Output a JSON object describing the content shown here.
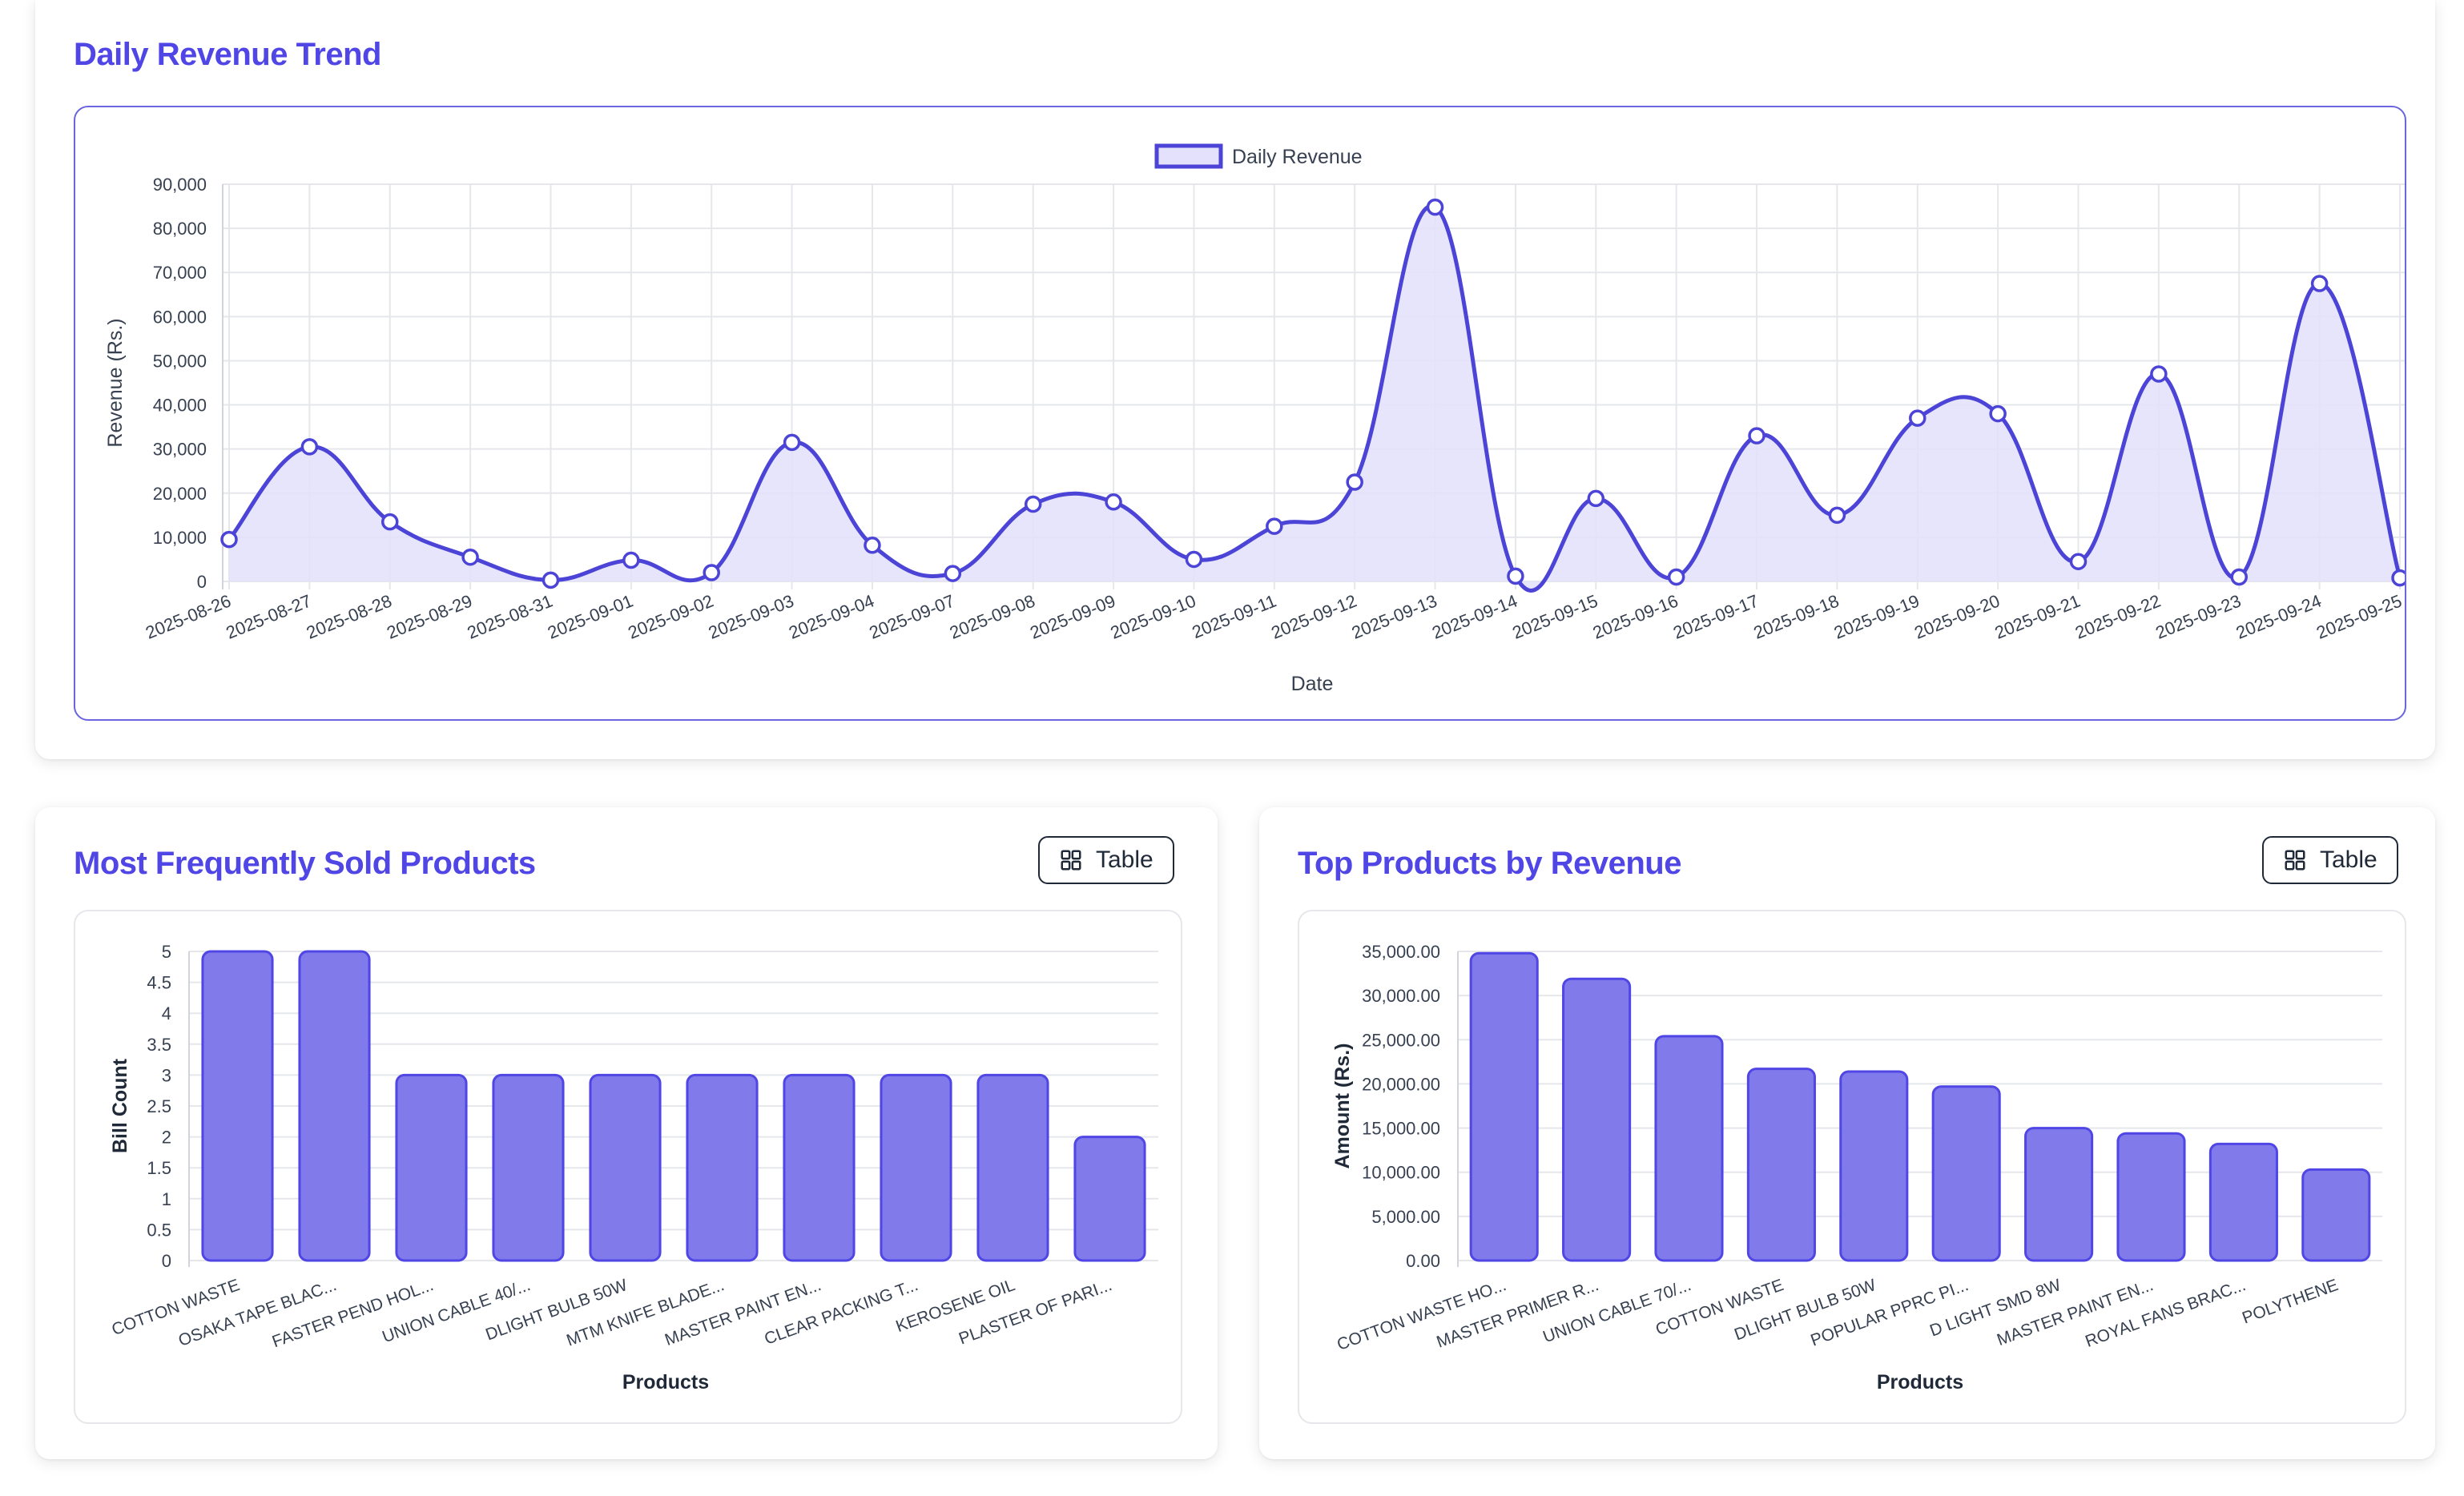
{
  "trend_card": {
    "title": "Daily Revenue Trend"
  },
  "frequent_card": {
    "title": "Most Frequently Sold Products",
    "table_button_label": "Table"
  },
  "revenue_card": {
    "title": "Top Products by Revenue",
    "table_button_label": "Table"
  },
  "colors": {
    "accent": "#4f46e5",
    "line": "#4b44d6",
    "bar_fill": "#807aea",
    "bar_stroke": "#4f46e5",
    "area_fill": "#e3e1fb",
    "grid": "#e5e7eb"
  },
  "chart_data": [
    {
      "type": "area",
      "legend": [
        "Daily Revenue"
      ],
      "legend_position": "top",
      "xlabel": "Date",
      "ylabel": "Revenue (Rs.)",
      "ylim": [
        0,
        90000
      ],
      "yticks": [
        "0",
        "10,000",
        "20,000",
        "30,000",
        "40,000",
        "50,000",
        "60,000",
        "70,000",
        "80,000",
        "90,000"
      ],
      "grid": true,
      "categories": [
        "2025-08-26",
        "2025-08-27",
        "2025-08-28",
        "2025-08-29",
        "2025-08-31",
        "2025-09-01",
        "2025-09-02",
        "2025-09-03",
        "2025-09-04",
        "2025-09-07",
        "2025-09-08",
        "2025-09-09",
        "2025-09-10",
        "2025-09-11",
        "2025-09-12",
        "2025-09-13",
        "2025-09-14",
        "2025-09-15",
        "2025-09-16",
        "2025-09-17",
        "2025-09-18",
        "2025-09-19",
        "2025-09-20",
        "2025-09-21",
        "2025-09-22",
        "2025-09-23",
        "2025-09-24",
        "2025-09-25"
      ],
      "series": [
        {
          "name": "Daily Revenue",
          "values": [
            9500,
            30500,
            13500,
            5500,
            300,
            4800,
            2000,
            31500,
            8200,
            1800,
            17500,
            18000,
            5000,
            12500,
            22500,
            84800,
            1200,
            18800,
            1000,
            33000,
            15000,
            37000,
            38000,
            4500,
            47000,
            1000,
            67500,
            800
          ]
        }
      ]
    },
    {
      "type": "bar",
      "xlabel": "Products",
      "ylabel": "Bill Count",
      "ylim": [
        0,
        5
      ],
      "yticks": [
        "0",
        "0.5",
        "1",
        "1.5",
        "2",
        "2.5",
        "3",
        "3.5",
        "4",
        "4.5",
        "5"
      ],
      "grid": true,
      "categories": [
        "COTTON WASTE",
        "OSAKA TAPE BLAC...",
        "FASTER PEND HOL...",
        "UNION CABLE 40/...",
        "DLIGHT BULB 50W",
        "MTM KNIFE BLADE...",
        "MASTER PAINT EN...",
        "CLEAR PACKING T...",
        "KEROSENE OIL",
        "PLASTER OF PARI..."
      ],
      "values": [
        5,
        5,
        3,
        3,
        3,
        3,
        3,
        3,
        3,
        2
      ]
    },
    {
      "type": "bar",
      "xlabel": "Products",
      "ylabel": "Amount (Rs.)",
      "ylim": [
        0,
        35000
      ],
      "yticks": [
        "0.00",
        "5,000.00",
        "10,000.00",
        "15,000.00",
        "20,000.00",
        "25,000.00",
        "30,000.00",
        "35,000.00"
      ],
      "grid": true,
      "categories": [
        "COTTON WASTE HO...",
        "MASTER PRIMER R...",
        "UNION CABLE 70/...",
        "COTTON WASTE",
        "DLIGHT BULB 50W",
        "POPULAR PPRC PI...",
        "D LIGHT SMD 8W",
        "MASTER PAINT EN...",
        "ROYAL FANS BRAC...",
        "POLYTHENE"
      ],
      "values": [
        34800,
        31900,
        25400,
        21700,
        21400,
        19700,
        15000,
        14400,
        13200,
        10300
      ]
    }
  ]
}
